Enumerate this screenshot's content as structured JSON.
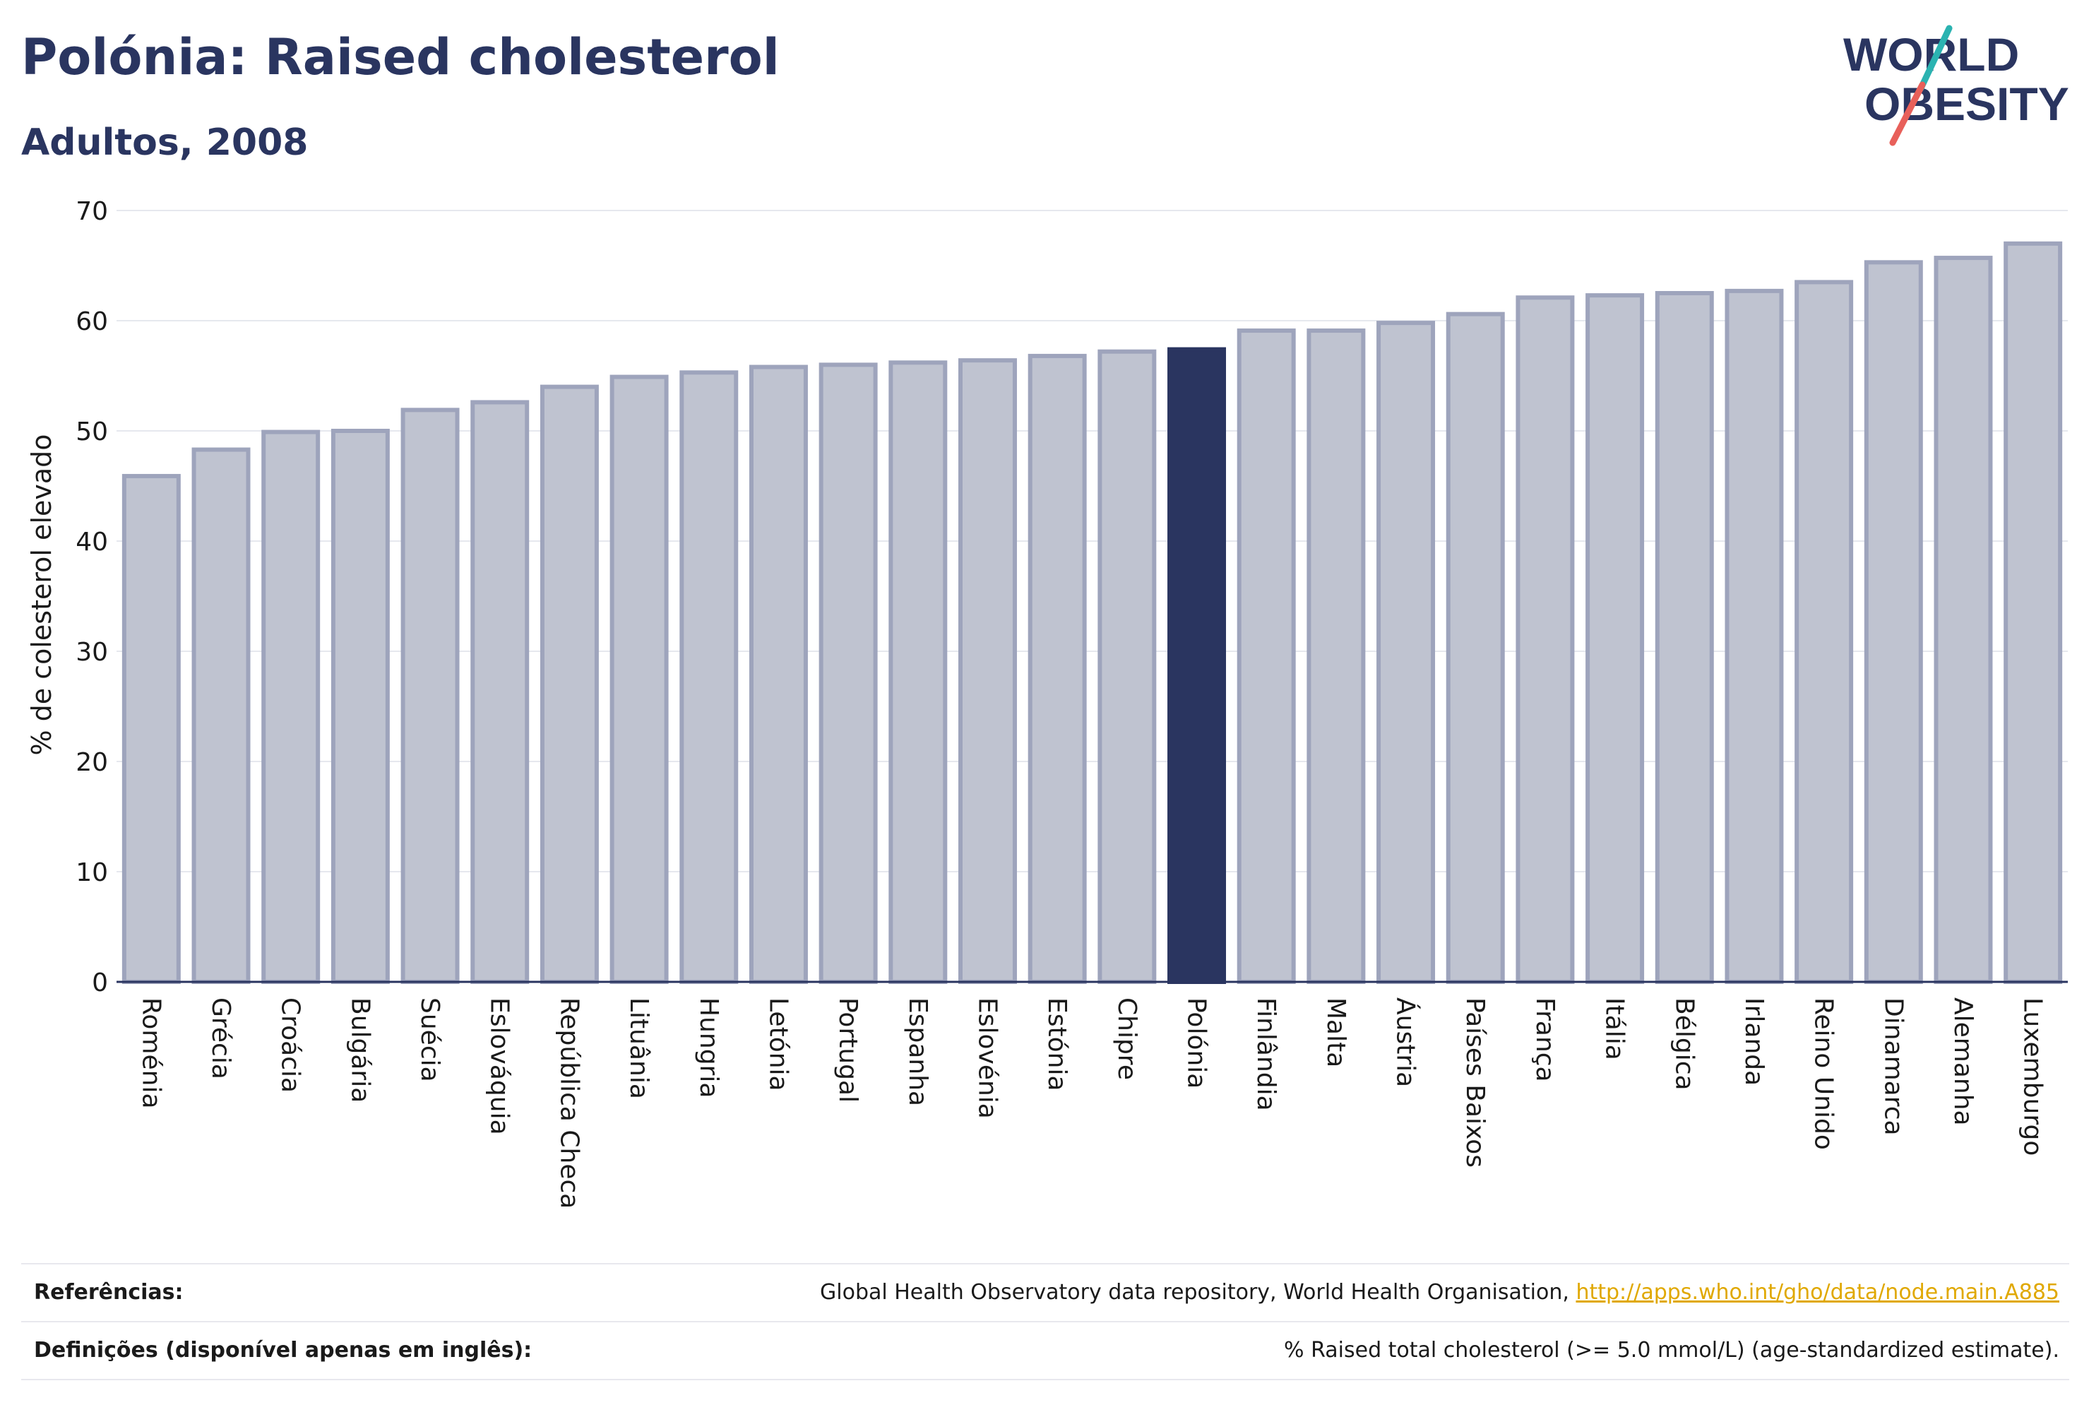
{
  "header": {
    "title": "Polónia: Raised cholesterol",
    "subtitle": "Adultos, 2008"
  },
  "logo": {
    "line1": "WORLD",
    "line2": "OBESITY",
    "colors": {
      "text": "#2a3560",
      "slash_teal": "#2bb3b1",
      "slash_red": "#e8605a"
    }
  },
  "chart_data": {
    "type": "bar",
    "title": "Polónia: Raised cholesterol",
    "subtitle": "Adultos, 2008",
    "ylabel": "% de colesterol elevado",
    "xlabel": "",
    "ylim": [
      0,
      70
    ],
    "yticks": [
      0,
      10,
      20,
      30,
      40,
      50,
      60,
      70
    ],
    "grid": true,
    "highlight": "Polónia",
    "colors": {
      "bar_fill": "#bfc3d0",
      "bar_stroke": "#9ea4bc",
      "highlight_fill": "#2a3560",
      "grid": "#e6e8ee",
      "axis": "#2a3560"
    },
    "categories": [
      "Roménia",
      "Grécia",
      "Croácia",
      "Bulgária",
      "Suécia",
      "Eslováquia",
      "República Checa",
      "Lituânia",
      "Hungria",
      "Letónia",
      "Portugal",
      "Espanha",
      "Eslovénia",
      "Estónia",
      "Chipre",
      "Polónia",
      "Finlândia",
      "Malta",
      "Áustria",
      "Países Baixos",
      "França",
      "Itália",
      "Bélgica",
      "Irlanda",
      "Reino Unido",
      "Dinamarca",
      "Alemanha",
      "Luxemburgo"
    ],
    "values": [
      45.9,
      48.3,
      49.9,
      50.0,
      51.9,
      52.6,
      54.0,
      54.9,
      55.3,
      55.8,
      56.0,
      56.2,
      56.4,
      56.8,
      57.2,
      57.4,
      59.1,
      59.1,
      59.8,
      60.6,
      62.1,
      62.3,
      62.5,
      62.7,
      63.5,
      65.3,
      65.7,
      67.0
    ]
  },
  "footer": {
    "references_label": "Referências:",
    "references_text": "Global Health Observatory data repository, World Health Organisation, ",
    "references_link": "http://apps.who.int/gho/data/node.main.A885",
    "definitions_label": "Definições (disponível apenas em inglês):",
    "definitions_text": "% Raised total cholesterol (>= 5.0 mmol/L) (age-standardized estimate)."
  }
}
